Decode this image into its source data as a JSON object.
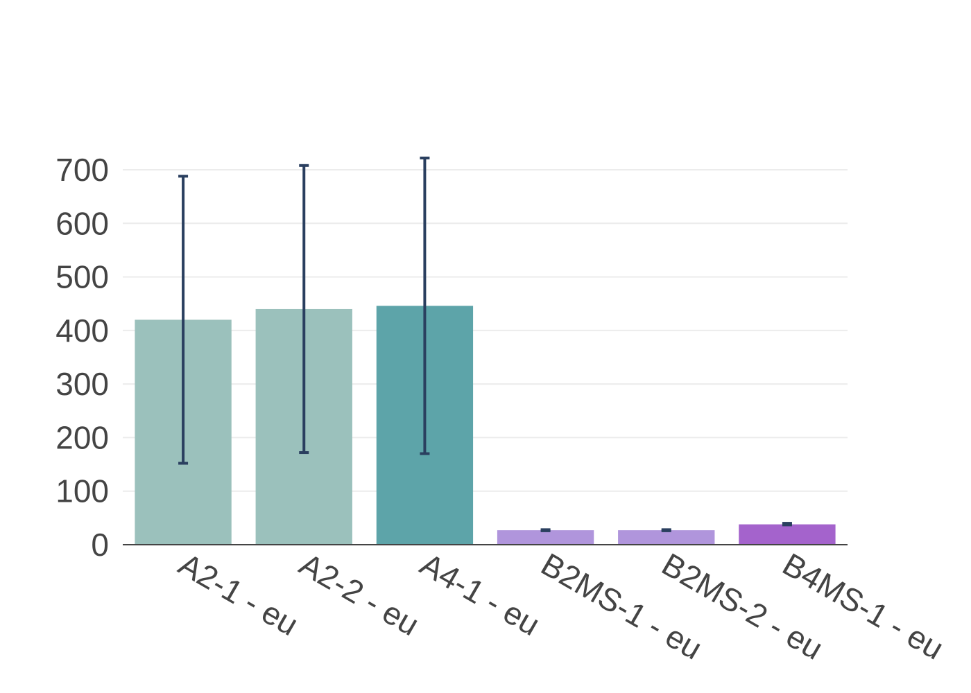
{
  "chart_data": {
    "type": "bar",
    "title": "",
    "xlabel": "",
    "ylabel": "",
    "ylim": [
      0,
      700
    ],
    "yticks": [
      0,
      100,
      200,
      300,
      400,
      500,
      600,
      700
    ],
    "grid": true,
    "legend": "none",
    "categories": [
      "A2-1 - eu",
      "A2-2 - eu",
      "A4-1 - eu",
      "B2MS-1 - eu",
      "B2MS-2 - eu",
      "B4MS-1 - eu"
    ],
    "values": [
      420,
      440,
      446,
      27,
      27,
      38
    ],
    "error_high": [
      688,
      708,
      722,
      28,
      28,
      40
    ],
    "error_low": [
      152,
      172,
      170,
      26,
      26,
      37
    ],
    "colors": [
      "#9bc1bc",
      "#9bc1bc",
      "#5da4a9",
      "#b095dc",
      "#b095dc",
      "#a463cc"
    ]
  }
}
